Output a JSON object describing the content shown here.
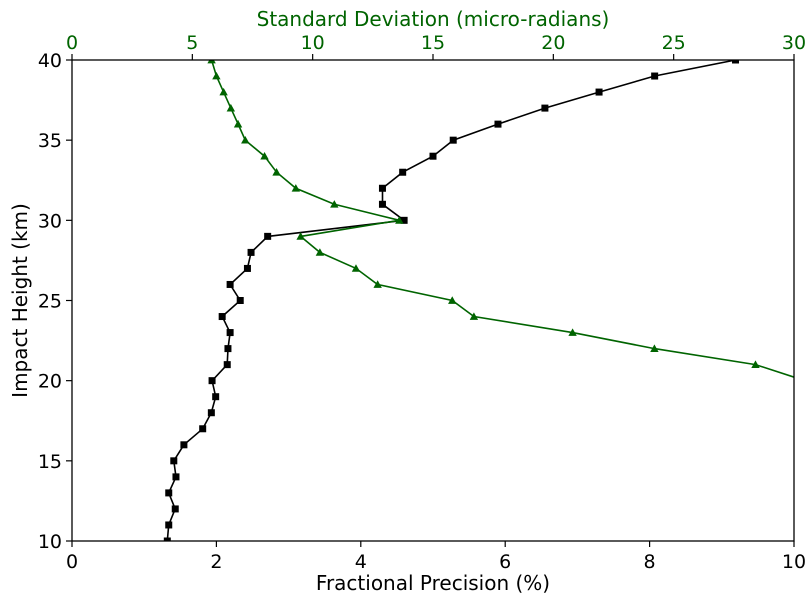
{
  "chart_data": {
    "type": "line",
    "xlabel_bottom": "Fractional Precision (%)",
    "xlabel_top": "Standard Deviation (micro-radians)",
    "ylabel": "Impact Height (km)",
    "xlim_bottom": [
      0,
      10
    ],
    "xlim_top": [
      0,
      30
    ],
    "ylim": [
      10,
      40
    ],
    "x_ticks_bottom": [
      "0",
      "2",
      "4",
      "6",
      "8",
      "10"
    ],
    "x_ticks_top": [
      "0",
      "5",
      "10",
      "15",
      "20",
      "25",
      "30"
    ],
    "y_ticks": [
      "10",
      "15",
      "20",
      "25",
      "30",
      "35",
      "40"
    ],
    "grid": false,
    "colors": {
      "fractional": "#000000",
      "stddev": "#006400"
    },
    "series": [
      {
        "axis": "bottom",
        "marker": "square",
        "color": "#000000",
        "points": [
          [
            1.32,
            10
          ],
          [
            1.34,
            11
          ],
          [
            1.43,
            12
          ],
          [
            1.34,
            13
          ],
          [
            1.44,
            14
          ],
          [
            1.41,
            15
          ],
          [
            1.55,
            16
          ],
          [
            1.81,
            17
          ],
          [
            1.93,
            18
          ],
          [
            1.99,
            19
          ],
          [
            1.94,
            20
          ],
          [
            2.15,
            21
          ],
          [
            2.16,
            22
          ],
          [
            2.19,
            23
          ],
          [
            2.08,
            24
          ],
          [
            2.33,
            25
          ],
          [
            2.19,
            26
          ],
          [
            2.43,
            27
          ],
          [
            2.48,
            28
          ],
          [
            2.71,
            29
          ],
          [
            4.6,
            30
          ],
          [
            4.3,
            31
          ],
          [
            4.3,
            32
          ],
          [
            4.58,
            33
          ],
          [
            5.0,
            34
          ],
          [
            5.28,
            35
          ],
          [
            5.9,
            36
          ],
          [
            6.55,
            37
          ],
          [
            7.3,
            38
          ],
          [
            8.07,
            39
          ],
          [
            9.19,
            40
          ]
        ]
      },
      {
        "axis": "top",
        "marker": "triangle",
        "color": "#006400",
        "points": [
          [
            32.5,
            19
          ],
          [
            28.4,
            21
          ],
          [
            24.2,
            22
          ],
          [
            20.8,
            23
          ],
          [
            16.7,
            24
          ],
          [
            15.8,
            25
          ],
          [
            12.7,
            26
          ],
          [
            11.8,
            27
          ],
          [
            10.3,
            28
          ],
          [
            9.5,
            29
          ],
          [
            13.6,
            30
          ],
          [
            10.9,
            31
          ],
          [
            9.3,
            32
          ],
          [
            8.5,
            33
          ],
          [
            8.0,
            34
          ],
          [
            7.2,
            35
          ],
          [
            6.9,
            36
          ],
          [
            6.6,
            37
          ],
          [
            6.3,
            38
          ],
          [
            6.0,
            39
          ],
          [
            5.8,
            40
          ]
        ]
      }
    ]
  }
}
